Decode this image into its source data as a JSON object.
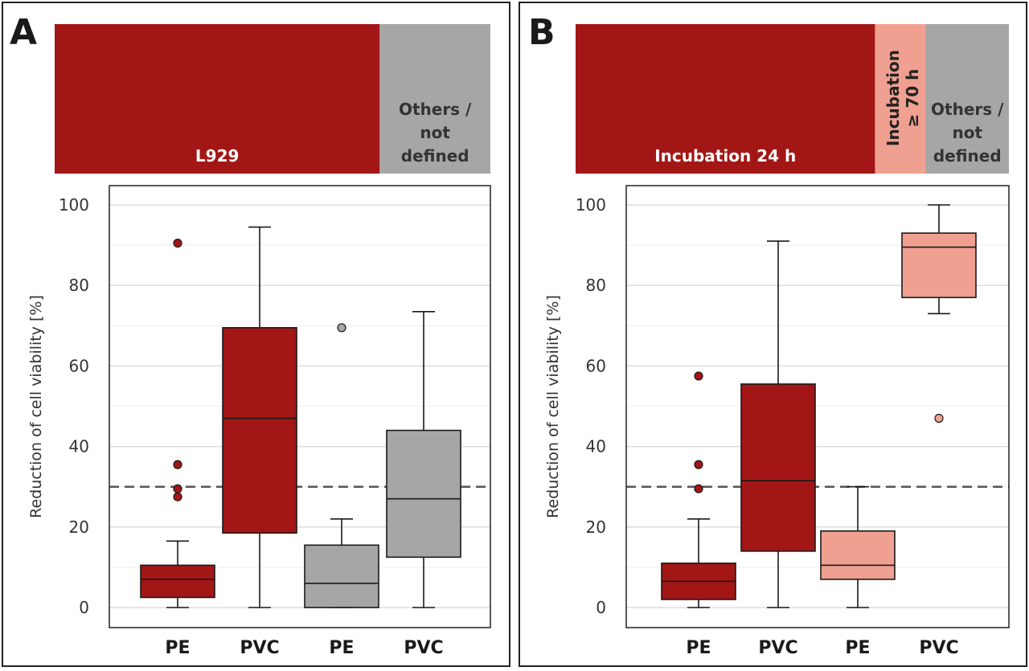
{
  "chart_data": [
    {
      "panel": "A",
      "type": "box",
      "header_segments": [
        {
          "label": "L929",
          "share": 0.746,
          "color": "#a31616",
          "text_color": "#ffffff"
        },
        {
          "label": "Others /\nnot\ndefined",
          "share": 0.254,
          "color": "#a6a6a6",
          "text_color": "#333333"
        }
      ],
      "ylabel": "Reduction of cell viability  [%]",
      "ylim": [
        0,
        105
      ],
      "yticks": [
        0,
        20,
        40,
        60,
        80,
        100
      ],
      "reference_line": 30,
      "categories": [
        "PE",
        "PVC",
        "PE",
        "PVC"
      ],
      "boxes": [
        {
          "label": "PE",
          "color": "#a31616",
          "min": 0,
          "q1": 2.5,
          "median": 7,
          "q3": 10.5,
          "max": 16.5,
          "outliers": [
            27.5,
            29.5,
            35.5,
            90.5
          ]
        },
        {
          "label": "PVC",
          "color": "#a31616",
          "min": 0,
          "q1": 18.5,
          "median": 47,
          "q3": 69.5,
          "max": 94.5,
          "outliers": []
        },
        {
          "label": "PE",
          "color": "#a6a6a6",
          "min": 0,
          "q1": 0,
          "median": 6,
          "q3": 15.5,
          "max": 22,
          "outliers": [
            69.5
          ]
        },
        {
          "label": "PVC",
          "color": "#a6a6a6",
          "min": 0,
          "q1": 12.5,
          "median": 27,
          "q3": 44,
          "max": 73.5,
          "outliers": []
        }
      ]
    },
    {
      "panel": "B",
      "type": "box",
      "header_segments": [
        {
          "label": "Incubation 24 h",
          "share": 0.691,
          "color": "#a31616",
          "text_color": "#ffffff"
        },
        {
          "label": "Incubation\n≥ 70 h",
          "share": 0.117,
          "color": "#f0a090",
          "text_color": "#222222",
          "rotated": true
        },
        {
          "label": "Others /\nnot\ndefined",
          "share": 0.192,
          "color": "#a6a6a6",
          "text_color": "#333333"
        }
      ],
      "ylabel": "Reduction of cell viability  [%]",
      "ylim": [
        0,
        105
      ],
      "yticks": [
        0,
        20,
        40,
        60,
        80,
        100
      ],
      "reference_line": 30,
      "categories": [
        "PE",
        "PVC",
        "PE",
        "PVC"
      ],
      "boxes": [
        {
          "label": "PE",
          "color": "#a31616",
          "min": 0,
          "q1": 2,
          "median": 6.5,
          "q3": 11,
          "max": 22,
          "outliers": [
            29.5,
            35.5,
            57.5
          ]
        },
        {
          "label": "PVC",
          "color": "#a31616",
          "min": 0,
          "q1": 14,
          "median": 31.5,
          "q3": 55.5,
          "max": 91,
          "outliers": []
        },
        {
          "label": "PE",
          "color": "#f0a090",
          "min": 0,
          "q1": 7,
          "median": 10.5,
          "q3": 19,
          "max": 30,
          "outliers": []
        },
        {
          "label": "PVC",
          "color": "#f0a090",
          "min": 73,
          "q1": 77,
          "median": 89.5,
          "q3": 93,
          "max": 100,
          "outliers": [
            47
          ]
        }
      ]
    }
  ]
}
